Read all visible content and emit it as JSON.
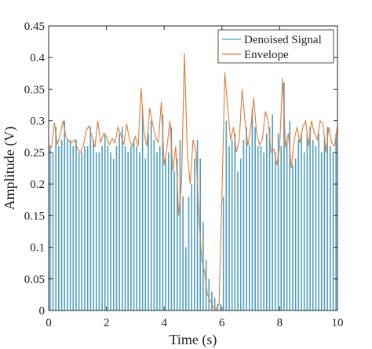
{
  "chart_data": {
    "type": "line",
    "title": "",
    "xlabel": "Time (s)",
    "ylabel": "Amplitude (V)",
    "xlim": [
      0,
      10
    ],
    "ylim": [
      0,
      0.45
    ],
    "xticks": [
      "0",
      "2",
      "4",
      "6",
      "8",
      "10"
    ],
    "yticks": [
      "0",
      "0.05",
      "0.1",
      "0.15",
      "0.2",
      "0.25",
      "0.3",
      "0.35",
      "0.4",
      "0.45"
    ],
    "grid": false,
    "legend_position": "top-right",
    "series": [
      {
        "name": "Denoised Signal",
        "style": "stem",
        "color": "#4f9fbf",
        "x": [
          0.05,
          0.15,
          0.25,
          0.35,
          0.45,
          0.55,
          0.65,
          0.75,
          0.85,
          0.95,
          1.05,
          1.15,
          1.25,
          1.35,
          1.45,
          1.55,
          1.65,
          1.75,
          1.85,
          1.95,
          2.05,
          2.15,
          2.25,
          2.35,
          2.45,
          2.55,
          2.65,
          2.75,
          2.85,
          2.95,
          3.05,
          3.15,
          3.25,
          3.35,
          3.45,
          3.55,
          3.65,
          3.75,
          3.85,
          3.95,
          4.05,
          4.15,
          4.25,
          4.35,
          4.45,
          4.55,
          4.65,
          4.75,
          4.85,
          4.95,
          5.05,
          5.15,
          5.25,
          5.35,
          5.45,
          5.55,
          5.65,
          5.75,
          5.85,
          5.95,
          6.05,
          6.15,
          6.25,
          6.35,
          6.45,
          6.55,
          6.65,
          6.75,
          6.85,
          6.95,
          7.05,
          7.15,
          7.25,
          7.35,
          7.45,
          7.55,
          7.65,
          7.75,
          7.85,
          7.95,
          8.05,
          8.15,
          8.25,
          8.35,
          8.45,
          8.55,
          8.65,
          8.75,
          8.85,
          8.95,
          9.05,
          9.15,
          9.25,
          9.35,
          9.45,
          9.55,
          9.65,
          9.75,
          9.85,
          9.95
        ],
        "y": [
          0.26,
          0.25,
          0.29,
          0.26,
          0.27,
          0.3,
          0.27,
          0.27,
          0.26,
          0.27,
          0.25,
          0.25,
          0.26,
          0.26,
          0.29,
          0.27,
          0.25,
          0.25,
          0.26,
          0.28,
          0.26,
          0.25,
          0.24,
          0.26,
          0.28,
          0.29,
          0.26,
          0.25,
          0.26,
          0.27,
          0.26,
          0.25,
          0.32,
          0.24,
          0.28,
          0.3,
          0.27,
          0.25,
          0.26,
          0.31,
          0.24,
          0.25,
          0.29,
          0.22,
          0.24,
          0.27,
          0.18,
          0.1,
          0.18,
          0.2,
          0.24,
          0.27,
          0.24,
          0.14,
          0.08,
          0.05,
          0.03,
          0.02,
          0.01,
          0.01,
          0.18,
          0.3,
          0.26,
          0.27,
          0.28,
          0.22,
          0.24,
          0.27,
          0.29,
          0.26,
          0.32,
          0.29,
          0.26,
          0.26,
          0.25,
          0.28,
          0.29,
          0.31,
          0.25,
          0.28,
          0.26,
          0.36,
          0.27,
          0.3,
          0.23,
          0.24,
          0.27,
          0.28,
          0.25,
          0.28,
          0.29,
          0.27,
          0.26,
          0.28,
          0.25,
          0.27,
          0.29,
          0.26,
          0.25,
          0.28
        ]
      },
      {
        "name": "Envelope",
        "style": "line",
        "color": "#e07b39",
        "x": [
          0,
          0.1,
          0.2,
          0.3,
          0.4,
          0.5,
          0.6,
          0.7,
          0.8,
          0.9,
          1.0,
          1.1,
          1.2,
          1.3,
          1.4,
          1.5,
          1.6,
          1.7,
          1.8,
          1.9,
          2.0,
          2.1,
          2.2,
          2.3,
          2.4,
          2.5,
          2.6,
          2.7,
          2.8,
          2.9,
          3.0,
          3.1,
          3.2,
          3.3,
          3.4,
          3.5,
          3.6,
          3.7,
          3.8,
          3.9,
          4.0,
          4.1,
          4.2,
          4.3,
          4.4,
          4.5,
          4.6,
          4.7,
          4.8,
          4.9,
          5.0,
          5.1,
          5.2,
          5.3,
          5.4,
          5.5,
          5.6,
          5.7,
          5.8,
          5.9,
          6.0,
          6.1,
          6.2,
          6.3,
          6.4,
          6.5,
          6.6,
          6.7,
          6.8,
          6.9,
          7.0,
          7.1,
          7.2,
          7.3,
          7.4,
          7.5,
          7.6,
          7.7,
          7.8,
          7.9,
          8.0,
          8.1,
          8.2,
          8.3,
          8.4,
          8.5,
          8.6,
          8.7,
          8.8,
          8.9,
          9.0,
          9.1,
          9.2,
          9.3,
          9.4,
          9.5,
          9.6,
          9.7,
          9.8,
          9.9,
          10.0
        ],
        "y": [
          0.262,
          0.258,
          0.297,
          0.262,
          0.278,
          0.3,
          0.274,
          0.268,
          0.265,
          0.27,
          0.255,
          0.25,
          0.26,
          0.285,
          0.292,
          0.275,
          0.258,
          0.3,
          0.265,
          0.28,
          0.275,
          0.262,
          0.272,
          0.265,
          0.29,
          0.278,
          0.262,
          0.295,
          0.27,
          0.26,
          0.275,
          0.26,
          0.352,
          0.282,
          0.26,
          0.32,
          0.295,
          0.275,
          0.265,
          0.33,
          0.23,
          0.26,
          0.3,
          0.22,
          0.26,
          0.15,
          0.2,
          0.407,
          0.25,
          0.2,
          0.27,
          0.25,
          0.15,
          0.08,
          0.06,
          0.025,
          0.015,
          0.005,
          0.002,
          0.01,
          0.18,
          0.376,
          0.32,
          0.27,
          0.29,
          0.25,
          0.27,
          0.35,
          0.3,
          0.26,
          0.29,
          0.336,
          0.28,
          0.262,
          0.27,
          0.315,
          0.3,
          0.25,
          0.255,
          0.23,
          0.26,
          0.368,
          0.258,
          0.28,
          0.225,
          0.27,
          0.29,
          0.265,
          0.29,
          0.3,
          0.26,
          0.3,
          0.28,
          0.27,
          0.3,
          0.295,
          0.25,
          0.29,
          0.265,
          0.26,
          0.292
        ]
      }
    ]
  }
}
